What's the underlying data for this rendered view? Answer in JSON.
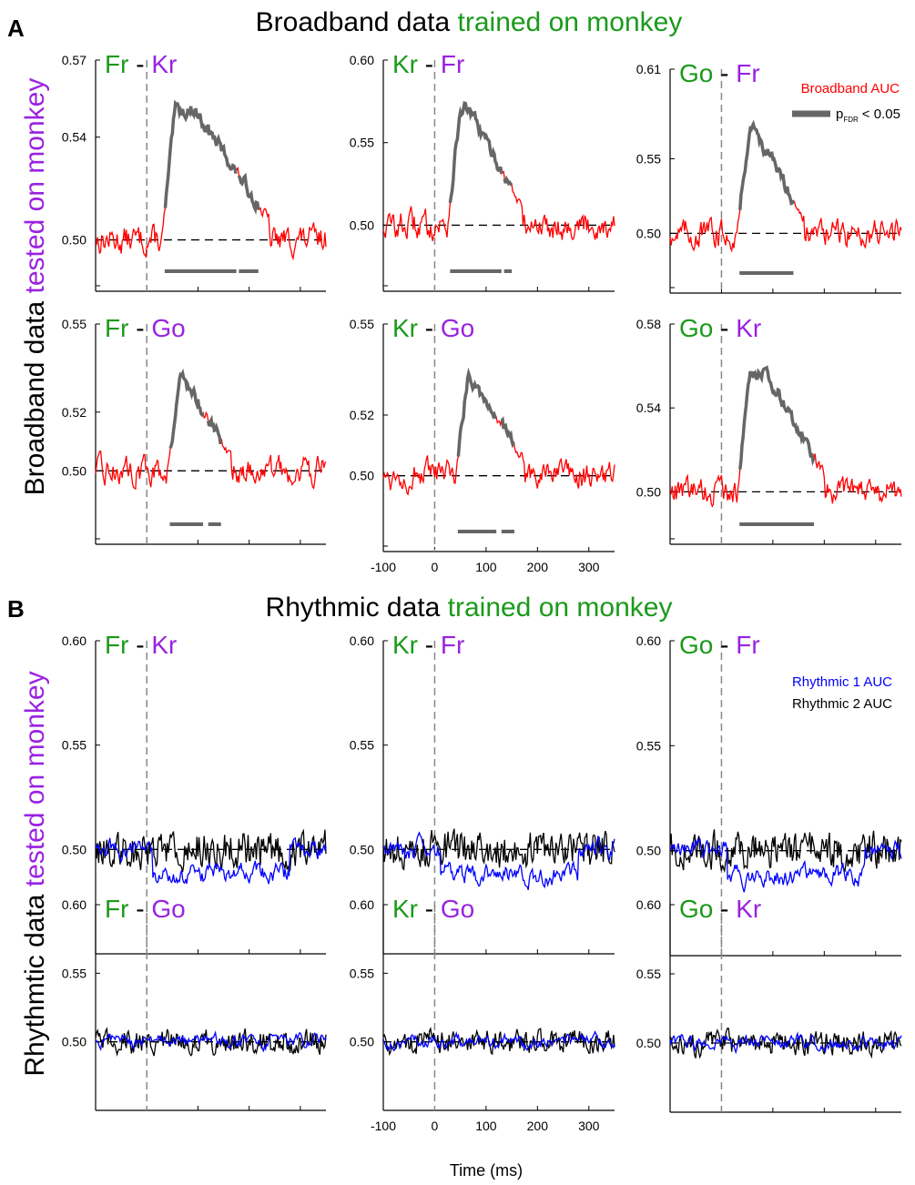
{
  "figure": {
    "panel_a": {
      "letter": "A",
      "title_black": "Broadband data",
      "title_green": "trained on monkey",
      "ylabel_black": "Broadband data",
      "ylabel_purple": "tested on monkey"
    },
    "panel_b": {
      "letter": "B",
      "title_black": "Rhythmic data",
      "title_green": "trained on monkey",
      "ylabel_black": "Rhythmtic data",
      "ylabel_purple": "tested on monkey"
    },
    "xlabel": "Time (ms)",
    "dash": "-",
    "legend_a": {
      "line": "Broadband AUC",
      "sig_p": "p",
      "sig_sub": "FDR",
      "sig_rest": "< 0.05"
    },
    "legend_b": {
      "line1": "Rhythmic 1 AUC",
      "line2": "Rhythmic 2 AUC"
    }
  },
  "colors": {
    "train": "#1a9a1a",
    "test": "#9a22e0",
    "broadband": "#ff0000",
    "significant": "#666666",
    "rhythmic1": "#0000ff",
    "rhythmic2": "#000000"
  },
  "chart_data": [
    {
      "type": "line",
      "panel": "A",
      "train": "Fr",
      "test": "Kr",
      "ylim": [
        0.48,
        0.57
      ],
      "yticks": [
        "0.57",
        "0.54",
        "0.50"
      ],
      "xlim": [
        -100,
        350
      ],
      "onset": 0,
      "chance": 0.5,
      "peak": 0.563,
      "peak_x": 95,
      "sig_windows": [
        [
          35,
          175
        ],
        [
          180,
          218
        ]
      ],
      "series": [
        {
          "key": "broadband"
        }
      ]
    },
    {
      "type": "line",
      "panel": "A",
      "train": "Kr",
      "test": "Fr",
      "ylim": [
        0.46,
        0.6
      ],
      "yticks": [
        "0.60",
        "0.55",
        "0.50"
      ],
      "xlim": [
        -100,
        350
      ],
      "onset": 0,
      "chance": 0.5,
      "peak": 0.588,
      "peak_x": 65,
      "sig_windows": [
        [
          30,
          130
        ],
        [
          135,
          150
        ]
      ],
      "series": [
        {
          "key": "broadband"
        }
      ]
    },
    {
      "type": "line",
      "panel": "A",
      "train": "Go",
      "test": "Fr",
      "ylim": [
        0.46,
        0.61
      ],
      "yticks": [
        "0.61",
        "0.55",
        "0.50"
      ],
      "xlim": [
        -100,
        350
      ],
      "onset": 0,
      "chance": 0.5,
      "peak": 0.59,
      "peak_x": 60,
      "sig_windows": [
        [
          35,
          140
        ]
      ],
      "series": [
        {
          "key": "broadband"
        }
      ]
    },
    {
      "type": "line",
      "panel": "A",
      "train": "Fr",
      "test": "Go",
      "ylim": [
        0.475,
        0.55
      ],
      "yticks": [
        "0.55",
        "0.52",
        "0.50"
      ],
      "xlim": [
        -100,
        350
      ],
      "onset": 0,
      "chance": 0.5,
      "peak": 0.54,
      "peak_x": 70,
      "sig_windows": [
        [
          45,
          110
        ],
        [
          120,
          145
        ]
      ],
      "series": [
        {
          "key": "broadband"
        }
      ]
    },
    {
      "type": "line",
      "panel": "A",
      "train": "Kr",
      "test": "Go",
      "ylim": [
        0.475,
        0.55
      ],
      "yticks": [
        "0.55",
        "0.52",
        "0.50"
      ],
      "xlim": [
        -100,
        350
      ],
      "onset": 0,
      "chance": 0.5,
      "peak": 0.541,
      "peak_x": 70,
      "sig_windows": [
        [
          45,
          120
        ],
        [
          130,
          155
        ]
      ],
      "series": [
        {
          "key": "broadband"
        }
      ]
    },
    {
      "type": "line",
      "panel": "A",
      "train": "Go",
      "test": "Kr",
      "ylim": [
        0.475,
        0.58
      ],
      "yticks": [
        "0.58",
        "0.54",
        "0.50"
      ],
      "xlim": [
        -100,
        350
      ],
      "onset": 0,
      "chance": 0.5,
      "peak": 0.57,
      "peak_x": 90,
      "sig_windows": [
        [
          35,
          180
        ]
      ],
      "series": [
        {
          "key": "broadband"
        }
      ]
    },
    {
      "type": "line",
      "panel": "B",
      "train": "Fr",
      "test": "Kr",
      "ylim": [
        0.45,
        0.6
      ],
      "yticks": [
        "0.60",
        "0.55",
        "0.50"
      ],
      "xlim": [
        -100,
        350
      ],
      "onset": 0,
      "chance": 0.5,
      "series": [
        {
          "key": "rhythmic2"
        },
        {
          "key": "rhythmic1"
        }
      ]
    },
    {
      "type": "line",
      "panel": "B",
      "train": "Kr",
      "test": "Fr",
      "ylim": [
        0.45,
        0.6
      ],
      "yticks": [
        "0.60",
        "0.55",
        "0.50"
      ],
      "xlim": [
        -100,
        350
      ],
      "onset": 0,
      "chance": 0.5,
      "series": [
        {
          "key": "rhythmic2"
        },
        {
          "key": "rhythmic1"
        }
      ]
    },
    {
      "type": "line",
      "panel": "B",
      "train": "Go",
      "test": "Fr",
      "ylim": [
        0.45,
        0.6
      ],
      "yticks": [
        "0.60",
        "0.55",
        "0.50"
      ],
      "xlim": [
        -100,
        350
      ],
      "onset": 0,
      "chance": 0.5,
      "series": [
        {
          "key": "rhythmic2"
        },
        {
          "key": "rhythmic1"
        }
      ]
    },
    {
      "type": "line",
      "panel": "B",
      "train": "Fr",
      "test": "Go",
      "ylim": [
        0.45,
        0.6
      ],
      "yticks": [
        "0.60",
        "0.55",
        "0.50"
      ],
      "xlim": [
        -100,
        350
      ],
      "onset": 0,
      "chance": 0.5,
      "series": [
        {
          "key": "rhythmic2"
        },
        {
          "key": "rhythmic1"
        }
      ]
    },
    {
      "type": "line",
      "panel": "B",
      "train": "Kr",
      "test": "Go",
      "ylim": [
        0.45,
        0.6
      ],
      "yticks": [
        "0.60",
        "0.55",
        "0.50"
      ],
      "xlim": [
        -100,
        350
      ],
      "onset": 0,
      "chance": 0.5,
      "series": [
        {
          "key": "rhythmic2"
        },
        {
          "key": "rhythmic1"
        }
      ]
    },
    {
      "type": "line",
      "panel": "B",
      "train": "Go",
      "test": "Kr",
      "ylim": [
        0.45,
        0.6
      ],
      "yticks": [
        "0.60",
        "0.55",
        "0.50"
      ],
      "xlim": [
        -100,
        350
      ],
      "onset": 0,
      "chance": 0.5,
      "series": [
        {
          "key": "rhythmic2"
        },
        {
          "key": "rhythmic1"
        }
      ]
    }
  ],
  "xticks": [
    "-100",
    "0",
    "100",
    "200",
    "300"
  ],
  "xtick_values": [
    -100,
    0,
    100,
    200,
    300
  ]
}
